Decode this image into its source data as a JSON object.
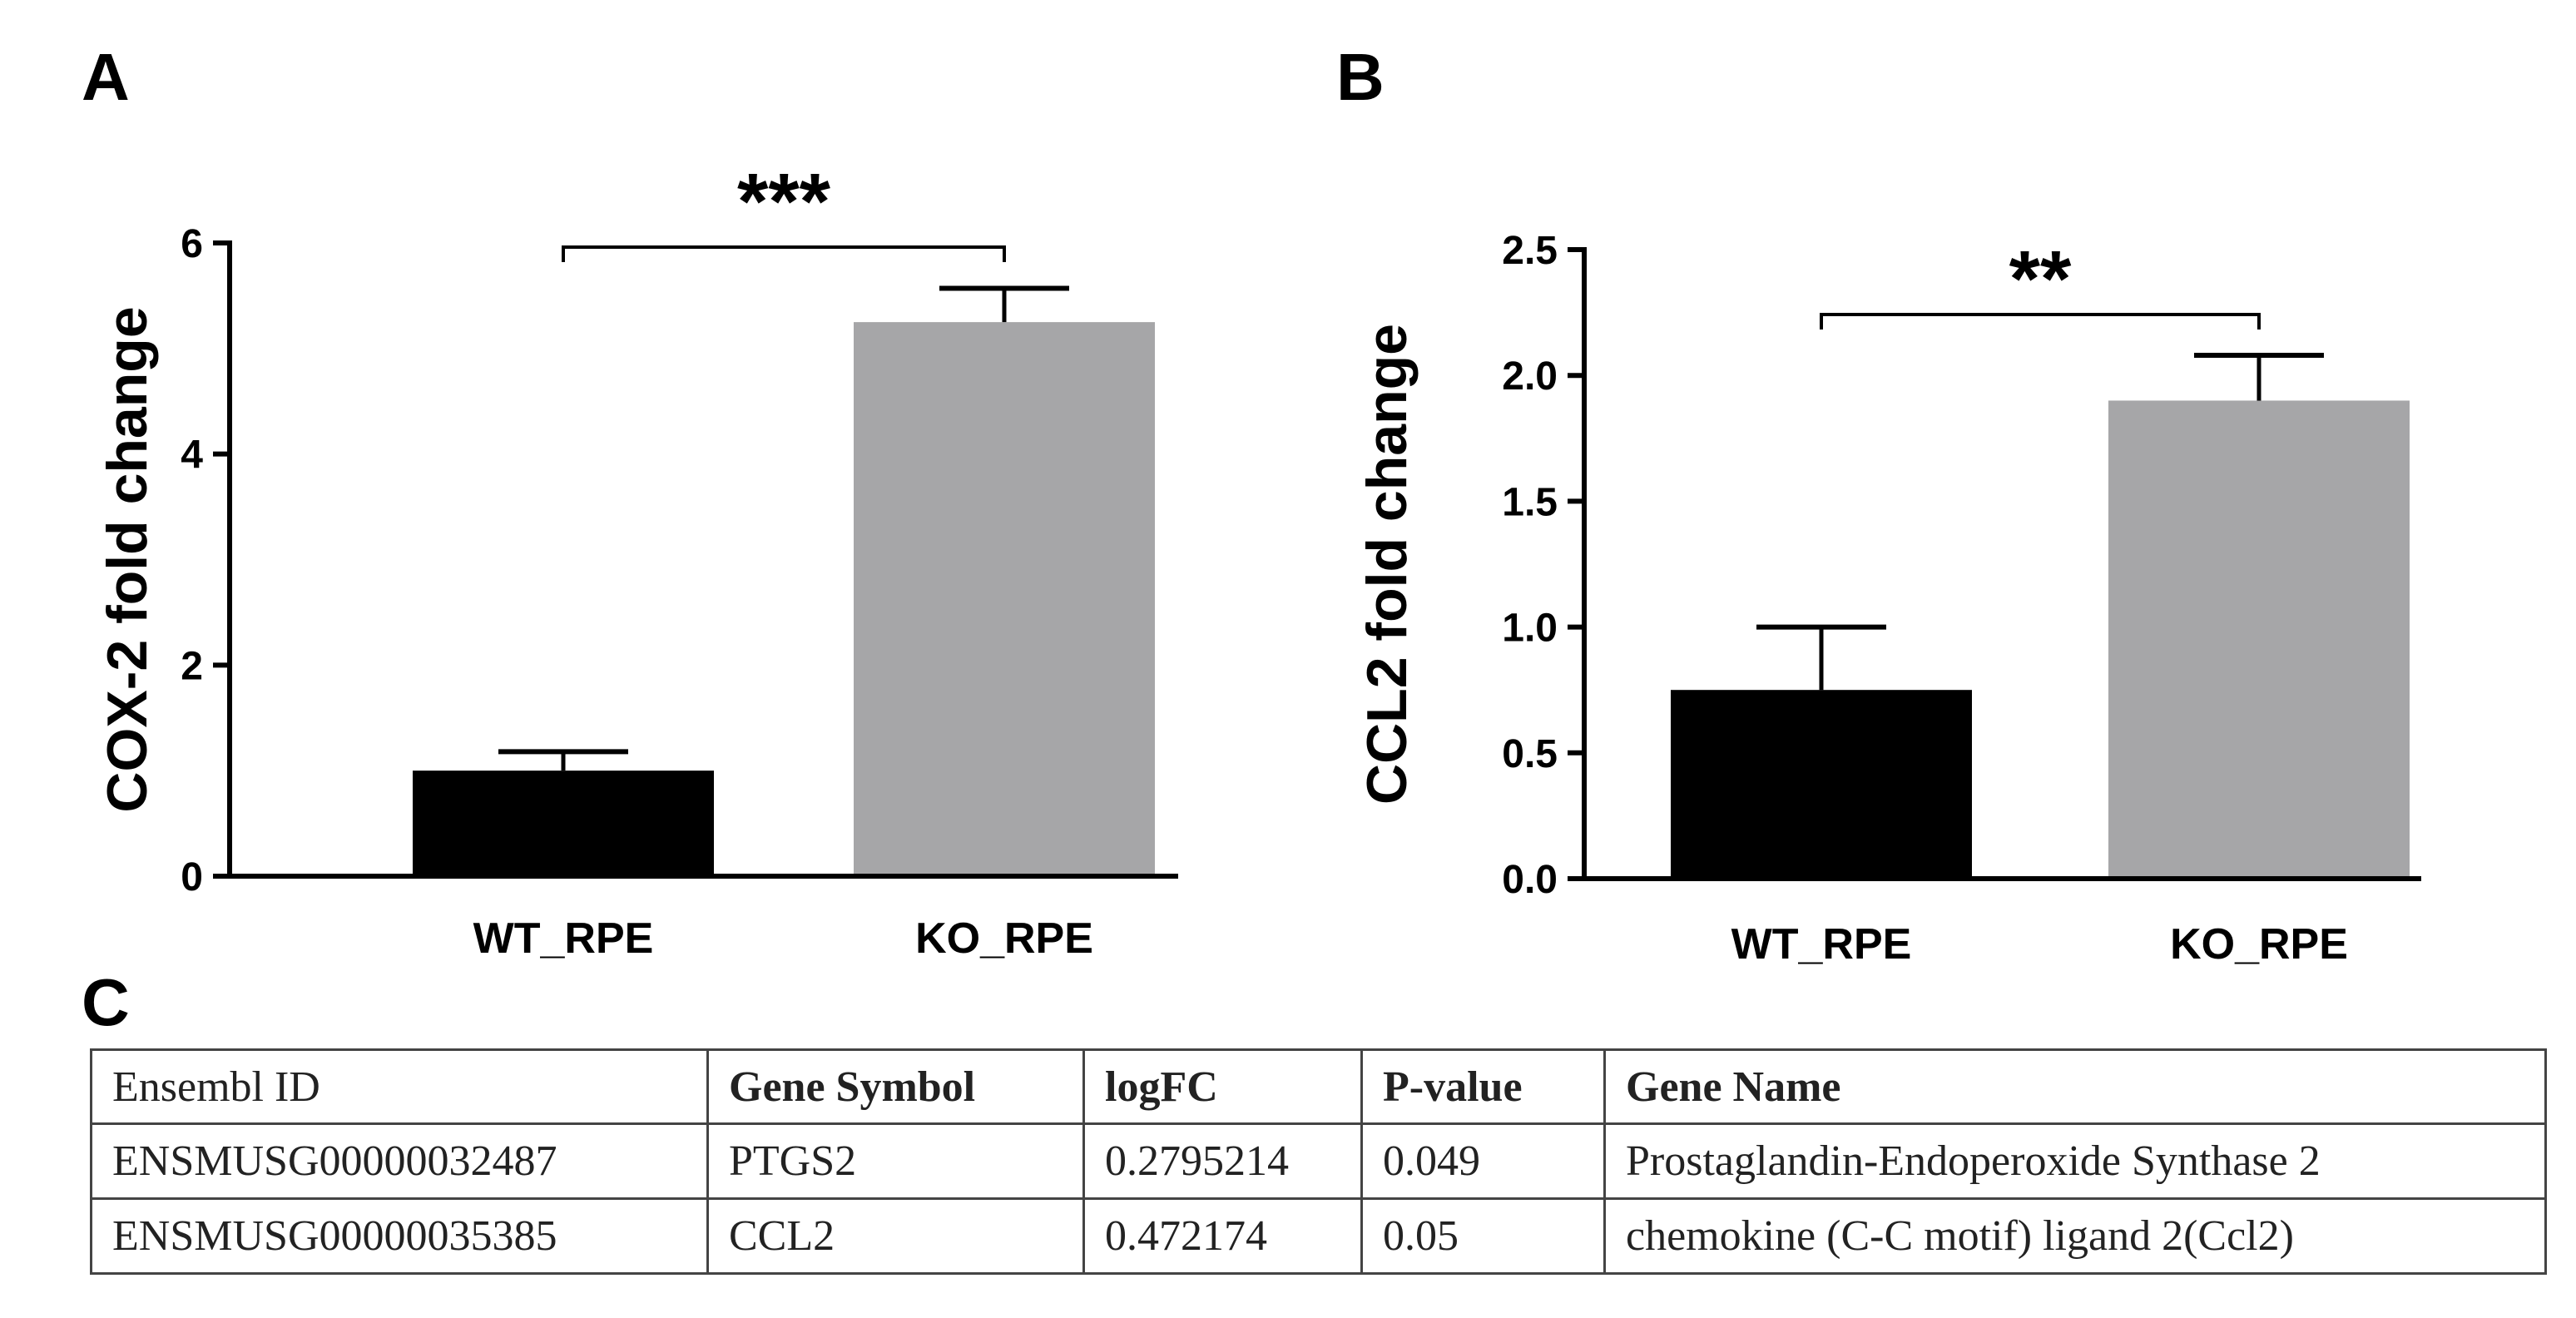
{
  "panels": {
    "a": "A",
    "b": "B",
    "c": "C"
  },
  "colors": {
    "wt": "#000000",
    "ko": "#a6a6a8",
    "axis": "#000000"
  },
  "chart_data": [
    {
      "type": "bar",
      "panel": "A",
      "categories": [
        "WT_RPE",
        "KO_RPE"
      ],
      "values": [
        1.0,
        5.25
      ],
      "errors": [
        0.18,
        0.32
      ],
      "ylabel": "COX-2 fold change",
      "ylim": [
        0,
        6
      ],
      "yticks": [
        0,
        2,
        4,
        6
      ],
      "ytick_labels": [
        "0",
        "2",
        "4",
        "6"
      ],
      "significance": "***"
    },
    {
      "type": "bar",
      "panel": "B",
      "categories": [
        "WT_RPE",
        "KO_RPE"
      ],
      "values": [
        0.75,
        1.9
      ],
      "errors": [
        0.25,
        0.18
      ],
      "ylabel": "CCL2 fold change",
      "ylim": [
        0,
        2.5
      ],
      "yticks": [
        0,
        0.5,
        1.0,
        1.5,
        2.0,
        2.5
      ],
      "ytick_labels": [
        "0.0",
        "0.5",
        "1.0",
        "1.5",
        "2.0",
        "2.5"
      ],
      "significance": "**"
    }
  ],
  "table": {
    "headers": [
      "Ensembl ID",
      "Gene Symbol",
      "logFC",
      "P-value",
      "Gene Name"
    ],
    "rows": [
      [
        "ENSMUSG00000032487",
        "PTGS2",
        "0.2795214",
        "0.049",
        "Prostaglandin-Endoperoxide Synthase 2"
      ],
      [
        "ENSMUSG00000035385",
        "CCL2",
        "0.472174",
        "0.05",
        "chemokine (C-C motif) ligand 2(Ccl2)"
      ]
    ]
  }
}
